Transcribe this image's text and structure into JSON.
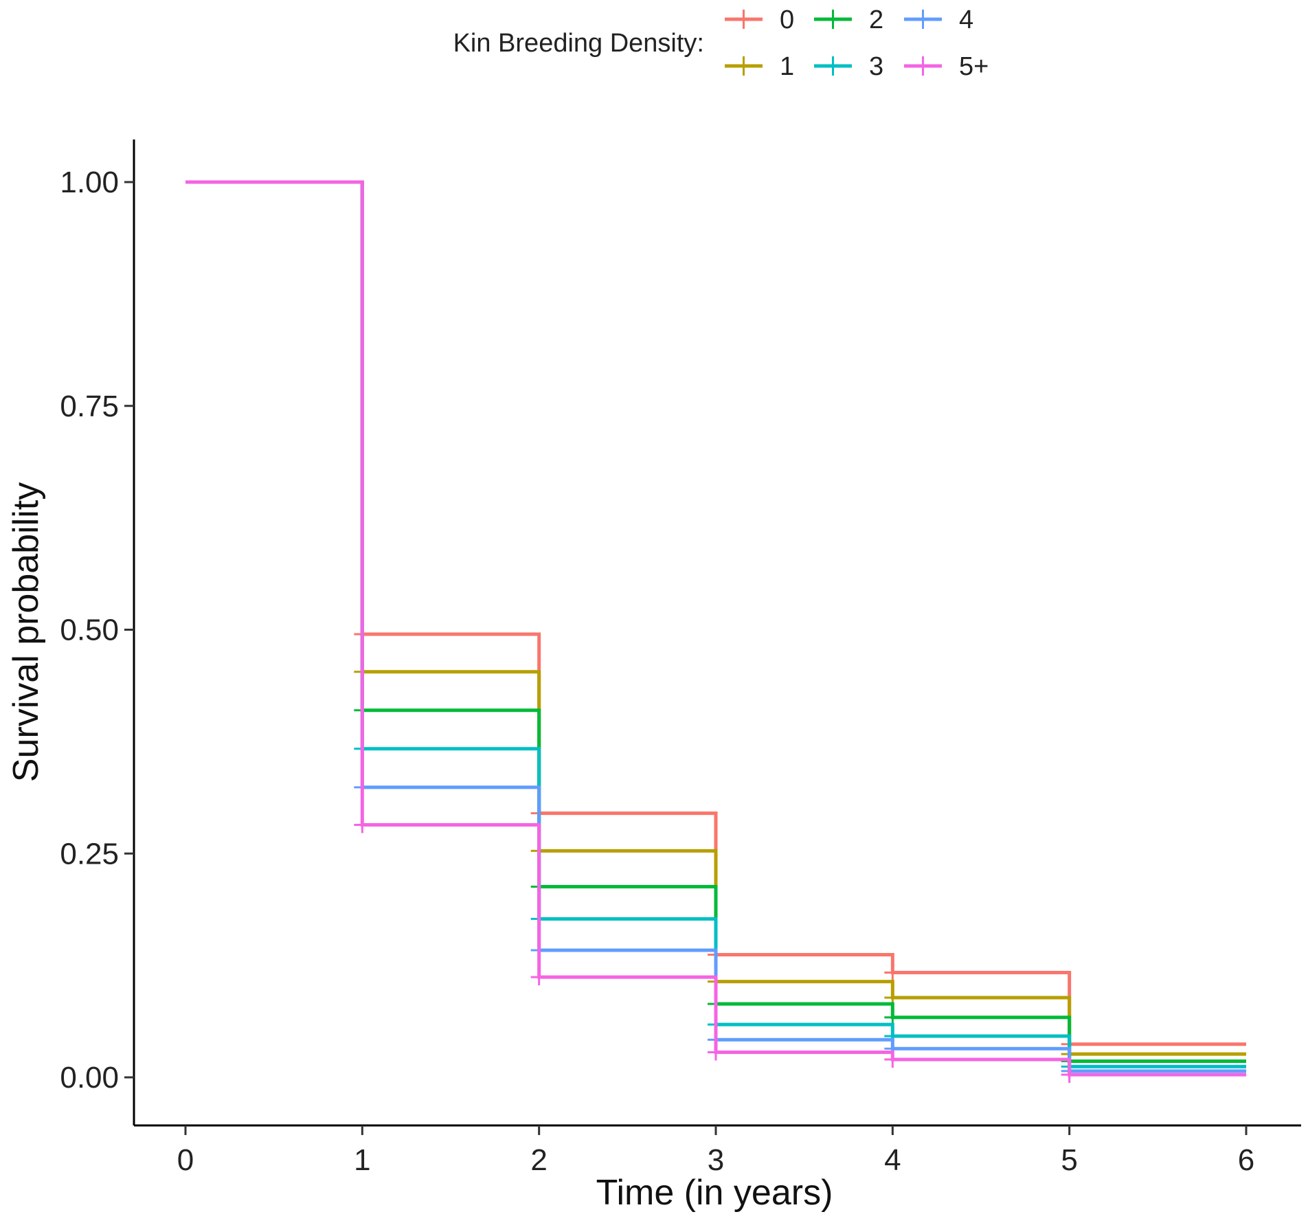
{
  "chart_data": {
    "type": "line",
    "step": true,
    "title": "",
    "xlabel": "Time (in years)",
    "ylabel": "Survival probability",
    "xlim": [
      0,
      6
    ],
    "ylim": [
      0,
      1
    ],
    "x_ticks": [
      "0",
      "1",
      "2",
      "3",
      "4",
      "5",
      "6"
    ],
    "y_ticks": [
      "0.00",
      "0.25",
      "0.50",
      "0.75",
      "1.00"
    ],
    "grid": false,
    "legend": {
      "title": "Kin Breeding Density:",
      "position": "top"
    },
    "x": [
      0,
      1,
      2,
      3,
      4,
      5,
      6
    ],
    "series": [
      {
        "name": "0",
        "color": "#F8766D",
        "values": [
          1.0,
          0.495,
          0.295,
          0.137,
          0.117,
          0.037,
          0.037
        ]
      },
      {
        "name": "1",
        "color": "#B79F00",
        "values": [
          1.0,
          0.453,
          0.253,
          0.107,
          0.089,
          0.026,
          0.026
        ]
      },
      {
        "name": "2",
        "color": "#00BA38",
        "values": [
          1.0,
          0.41,
          0.213,
          0.082,
          0.067,
          0.018,
          0.018
        ]
      },
      {
        "name": "3",
        "color": "#00BFC4",
        "values": [
          1.0,
          0.367,
          0.177,
          0.059,
          0.046,
          0.012,
          0.012
        ]
      },
      {
        "name": "4",
        "color": "#619CFF",
        "values": [
          1.0,
          0.324,
          0.142,
          0.042,
          0.032,
          0.007,
          0.007
        ]
      },
      {
        "name": "5+",
        "color": "#F564E3",
        "values": [
          1.0,
          0.282,
          0.112,
          0.028,
          0.02,
          0.003,
          0.003
        ]
      }
    ]
  }
}
